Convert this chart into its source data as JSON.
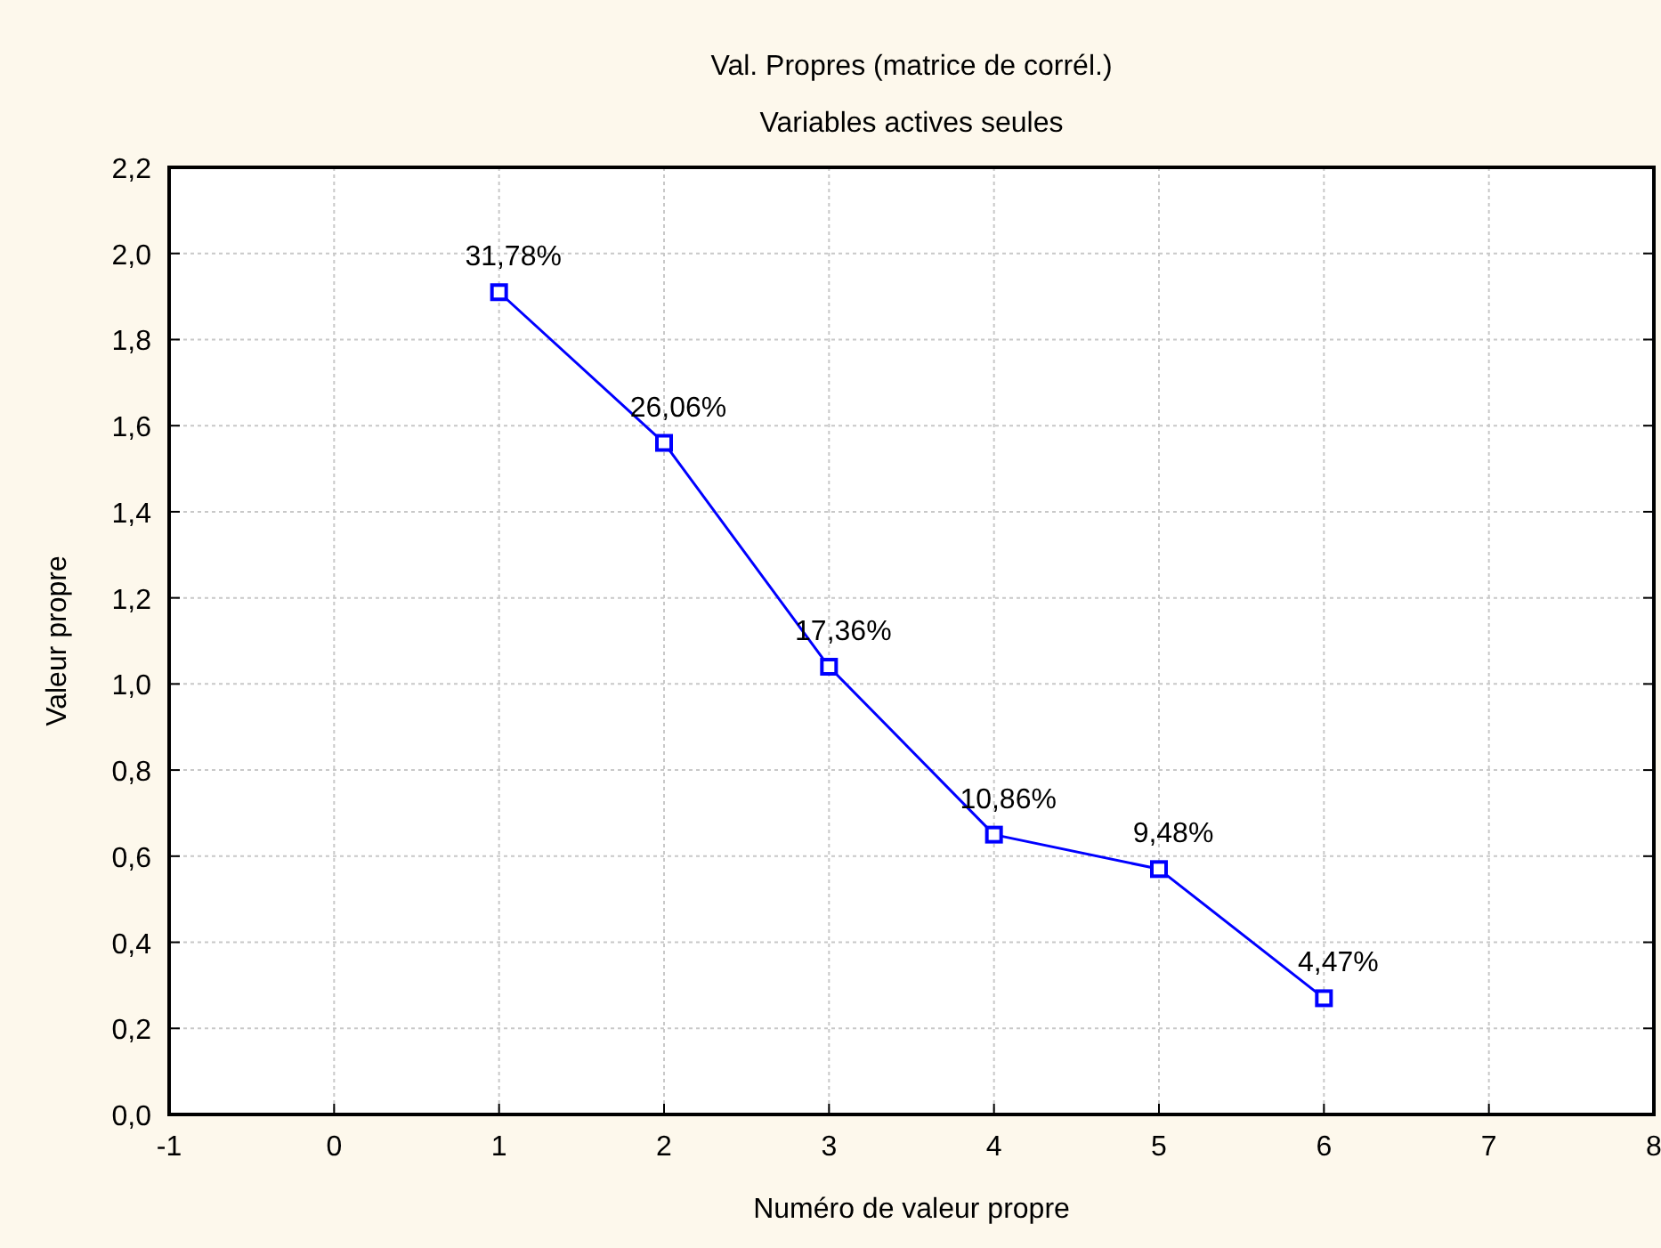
{
  "chart_data": {
    "type": "line",
    "title": "Val. Propres (matrice de corrél.)",
    "subtitle": "Variables actives seules",
    "xlabel": "Numéro de valeur propre",
    "ylabel": "Valeur propre",
    "x": [
      1,
      2,
      3,
      4,
      5,
      6
    ],
    "series": [
      {
        "color": "#0000ff",
        "values": [
          1.91,
          1.56,
          1.04,
          0.65,
          0.57,
          0.27
        ]
      }
    ],
    "annotations": [
      {
        "text": "31,78%",
        "x": 1,
        "y": 1.91
      },
      {
        "text": "26,06%",
        "x": 2,
        "y": 1.56
      },
      {
        "text": "17,36%",
        "x": 3,
        "y": 1.04
      },
      {
        "text": "10,86%",
        "x": 4,
        "y": 0.65
      },
      {
        "text": "9,48%",
        "x": 5,
        "y": 0.57
      },
      {
        "text": "4,47%",
        "x": 6,
        "y": 0.27
      }
    ],
    "xlim": [
      -1,
      8
    ],
    "xticks": [
      -1,
      0,
      1,
      2,
      3,
      4,
      5,
      6,
      7,
      8
    ],
    "ylim": [
      0,
      2.2
    ],
    "yticks": [
      {
        "value": 0,
        "label": "0,0"
      },
      {
        "value": 0.2,
        "label": "0,2"
      },
      {
        "value": 0.4,
        "label": "0,4"
      },
      {
        "value": 0.6,
        "label": "0,6"
      },
      {
        "value": 0.8,
        "label": "0,8"
      },
      {
        "value": 1,
        "label": "1,0"
      },
      {
        "value": 1.2,
        "label": "1,2"
      },
      {
        "value": 1.4,
        "label": "1,4"
      },
      {
        "value": 1.6,
        "label": "1,6"
      },
      {
        "value": 1.8,
        "label": "1,8"
      },
      {
        "value": 2,
        "label": "2,0"
      },
      {
        "value": 2.2,
        "label": "2,2"
      }
    ],
    "grid": true,
    "marker": "square",
    "line_style": "solid"
  }
}
